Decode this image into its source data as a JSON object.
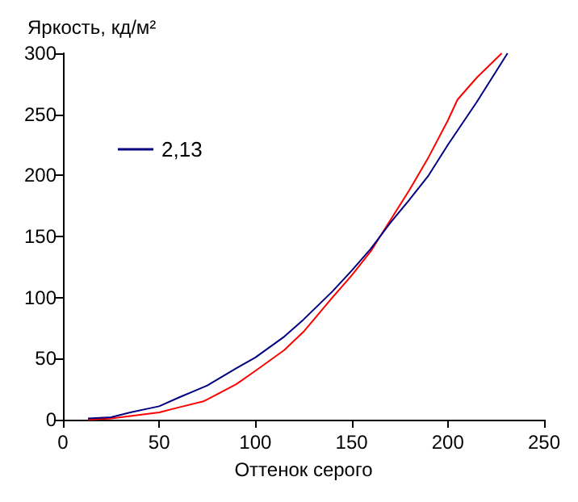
{
  "chart_data": {
    "type": "line",
    "xlabel": "Оттенок серого",
    "ylabel": "Яркость, кд/м²",
    "xlim": [
      0,
      250
    ],
    "xticks": [
      0,
      50,
      100,
      150,
      200,
      250
    ],
    "ylim": [
      0,
      300
    ],
    "yticks": [
      0,
      50,
      100,
      150,
      200,
      250,
      300
    ],
    "grid": false,
    "legend": "top left",
    "marker": "none",
    "line_style": "solid",
    "series": [
      {
        "color": "#ff0000",
        "x": [
          13,
          25,
          35,
          50,
          60,
          73,
          90,
          100,
          115,
          125,
          140,
          150,
          160,
          170,
          180,
          190,
          200,
          205,
          215,
          228
        ],
        "values": [
          0,
          1,
          3,
          6,
          10,
          15,
          29,
          40,
          57,
          72,
          100,
          118,
          138,
          163,
          188,
          215,
          245,
          262,
          280,
          300
        ]
      },
      {
        "name": "2,13",
        "color": "#000080",
        "x": [
          13,
          25,
          35,
          50,
          60,
          75,
          90,
          100,
          115,
          125,
          140,
          150,
          160,
          170,
          180,
          190,
          200,
          215,
          231
        ],
        "values": [
          1,
          2,
          6,
          11,
          18,
          28,
          42,
          51,
          68,
          82,
          105,
          122,
          140,
          161,
          180,
          200,
          225,
          260,
          300
        ]
      }
    ]
  }
}
